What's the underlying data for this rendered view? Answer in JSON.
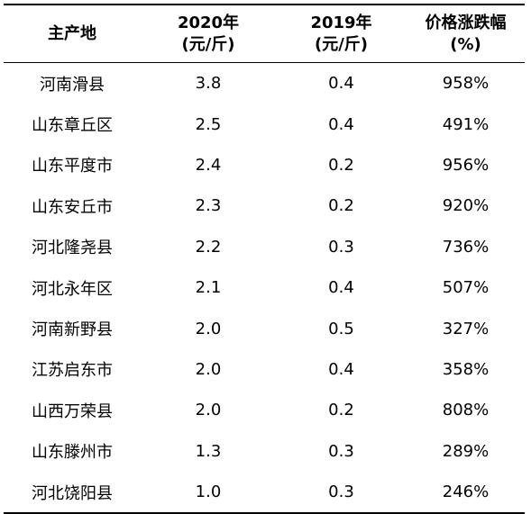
{
  "table": {
    "headers": [
      {
        "line1": "主产地",
        "line2": ""
      },
      {
        "line1": "2020年",
        "line2": "(元/斤)"
      },
      {
        "line1": "2019年",
        "line2": "(元/斤)"
      },
      {
        "line1": "价格涨跌幅",
        "line2": "(%)"
      }
    ],
    "rows": [
      [
        "河南滑县",
        "3.8",
        "0.4",
        "958%"
      ],
      [
        "山东章丘区",
        "2.5",
        "0.4",
        "491%"
      ],
      [
        "山东平度市",
        "2.4",
        "0.2",
        "956%"
      ],
      [
        "山东安丘市",
        "2.3",
        "0.2",
        "920%"
      ],
      [
        "河北隆尧县",
        "2.2",
        "0.3",
        "736%"
      ],
      [
        "河北永年区",
        "2.1",
        "0.4",
        "507%"
      ],
      [
        "河南新野县",
        "2.0",
        "0.5",
        "327%"
      ],
      [
        "江苏启东市",
        "2.0",
        "0.4",
        "358%"
      ],
      [
        "山西万荣县",
        "2.0",
        "0.2",
        "808%"
      ],
      [
        "山东滕州市",
        "1.3",
        "0.3",
        "289%"
      ],
      [
        "河北饶阳县",
        "1.0",
        "0.3",
        "246%"
      ]
    ]
  }
}
